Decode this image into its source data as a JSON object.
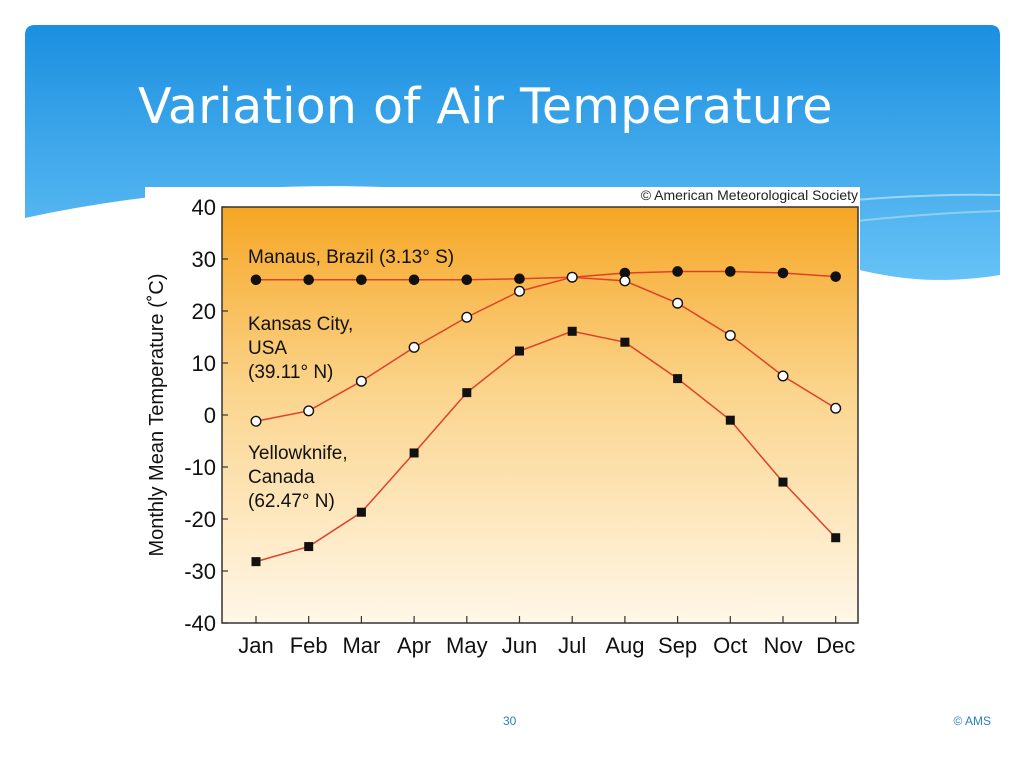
{
  "slide": {
    "title": "Variation of Air Temperature",
    "page_number": "30",
    "footer_credit": "© AMS"
  },
  "figure": {
    "copyright": "© American Meteorological Society"
  },
  "colors": {
    "header_blue_top": "#1b8fe0",
    "header_blue_bottom": "#5fbcf4",
    "plot_orange": "#f6a623",
    "plot_light": "#fff6e4",
    "series_line": "#e0402a"
  },
  "chart_data": {
    "type": "line",
    "ylabel": "Monthly Mean Temperature (˚C)",
    "xlabel": "",
    "ylim": [
      -40,
      40
    ],
    "yticks": [
      40,
      30,
      20,
      10,
      0,
      -10,
      -20,
      -30,
      -40
    ],
    "categories": [
      "Jan",
      "Feb",
      "Mar",
      "Apr",
      "May",
      "Jun",
      "Jul",
      "Aug",
      "Sep",
      "Oct",
      "Nov",
      "Dec"
    ],
    "grid": false,
    "series": [
      {
        "name": "Manaus, Brazil (3.13° S)",
        "label_lines": [
          "Manaus, Brazil (3.13° S)"
        ],
        "marker": "filled-circle",
        "values": [
          26,
          26,
          26,
          26,
          26,
          26.2,
          26.5,
          27.3,
          27.6,
          27.6,
          27.3,
          26.6
        ]
      },
      {
        "name": "Kansas City, USA (39.11° N)",
        "label_lines": [
          "Kansas City,",
          "USA",
          "(39.11° N)"
        ],
        "marker": "open-circle",
        "values": [
          -1.2,
          0.8,
          6.5,
          13,
          18.8,
          23.8,
          26.5,
          25.8,
          21.5,
          15.3,
          7.5,
          1.3
        ]
      },
      {
        "name": "Yellowknife, Canada (62.47° N)",
        "label_lines": [
          "Yellowknife,",
          "Canada",
          "(62.47° N)"
        ],
        "marker": "filled-square",
        "values": [
          -28.2,
          -25.3,
          -18.7,
          -7.3,
          4.3,
          12.3,
          16.1,
          14,
          7,
          -1,
          -12.9,
          -23.6
        ]
      }
    ]
  }
}
